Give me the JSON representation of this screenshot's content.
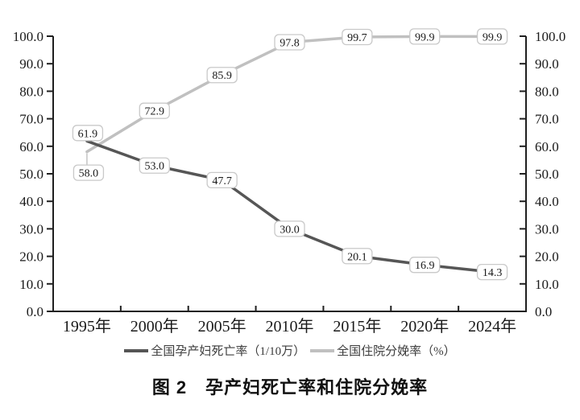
{
  "figure": {
    "caption": "图 2　孕产妇死亡率和住院分娩率"
  },
  "colors": {
    "axis": "#1f1f1f",
    "text": "#1a1a1a",
    "label_box_fill": "#ffffff",
    "label_box_border": "#c9c9c9",
    "leader_line": "#c4c4c4"
  },
  "chart_data": {
    "type": "line",
    "categories": [
      "1995年",
      "2000年",
      "2005年",
      "2010年",
      "2015年",
      "2020年",
      "2024年"
    ],
    "series": [
      {
        "name": "全国孕产妇死亡率（1/10万）",
        "values": [
          61.9,
          53.0,
          47.7,
          30.0,
          20.1,
          16.9,
          14.3
        ],
        "labels": [
          "61.9",
          "53.0",
          "47.7",
          "30.0",
          "20.1",
          "16.9",
          "14.3"
        ],
        "color": "#565656"
      },
      {
        "name": "全国住院分娩率（%）",
        "values": [
          58.0,
          72.9,
          85.9,
          97.8,
          99.7,
          99.9,
          99.9
        ],
        "labels": [
          "58.0",
          "72.9",
          "85.9",
          "97.8",
          "99.7",
          "99.9",
          "99.9"
        ],
        "color": "#c0c0c0"
      }
    ],
    "y_axis": {
      "min": 0,
      "max": 100,
      "step": 10,
      "tick_labels": [
        "0.0",
        "10.0",
        "20.0",
        "30.0",
        "40.0",
        "50.0",
        "60.0",
        "70.0",
        "80.0",
        "90.0",
        "100.0"
      ]
    },
    "secondary_y_axis": {
      "min": 0,
      "max": 100,
      "step": 10,
      "tick_labels": [
        "0.0",
        "10.0",
        "20.0",
        "30.0",
        "40.0",
        "50.0",
        "60.0",
        "70.0",
        "80.0",
        "90.0",
        "100.0"
      ]
    },
    "legend_position": "bottom",
    "grid": false,
    "data_labels_visible": true
  }
}
